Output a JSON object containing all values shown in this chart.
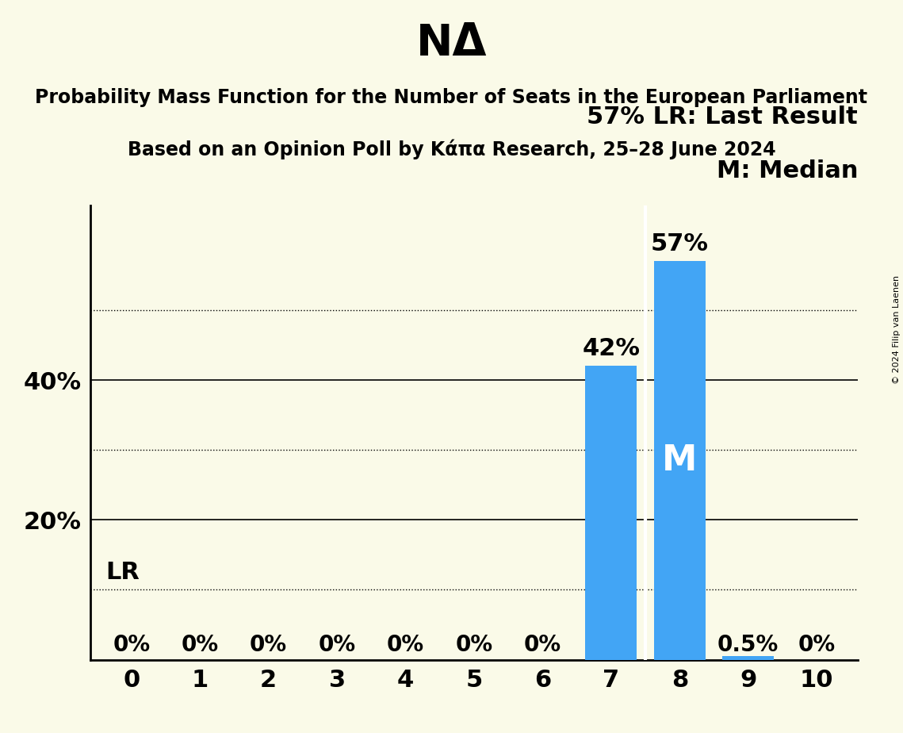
{
  "title": "NΔ",
  "subtitle_line1": "Probability Mass Function for the Number of Seats in the European Parliament",
  "subtitle_line2": "Based on an Opinion Poll by Κάπα Research, 25–28 June 2024",
  "copyright": "© 2024 Filip van Laenen",
  "categories": [
    0,
    1,
    2,
    3,
    4,
    5,
    6,
    7,
    8,
    9,
    10
  ],
  "values": [
    0.0,
    0.0,
    0.0,
    0.0,
    0.0,
    0.0,
    0.0,
    0.42,
    0.57,
    0.005,
    0.0
  ],
  "bar_color": "#42A5F5",
  "background_color": "#FAFAE8",
  "ylim": [
    0,
    0.65
  ],
  "yticks": [
    0.2,
    0.4
  ],
  "ytick_labels": [
    "20%",
    "40%"
  ],
  "solid_gridlines": [
    0.2,
    0.4
  ],
  "dotted_gridlines": [
    0.1,
    0.3,
    0.5
  ],
  "median_bar": 8,
  "bar_labels": [
    "0%",
    "0%",
    "0%",
    "0%",
    "0%",
    "0%",
    "0%",
    "42%",
    "57%",
    "0.5%",
    "0%"
  ],
  "show_label_above": [
    false,
    false,
    false,
    false,
    false,
    false,
    false,
    true,
    true,
    false,
    false
  ],
  "legend_text_1": "LR: Last Result",
  "legend_text_2": "M: Median",
  "legend_pct": "57%"
}
